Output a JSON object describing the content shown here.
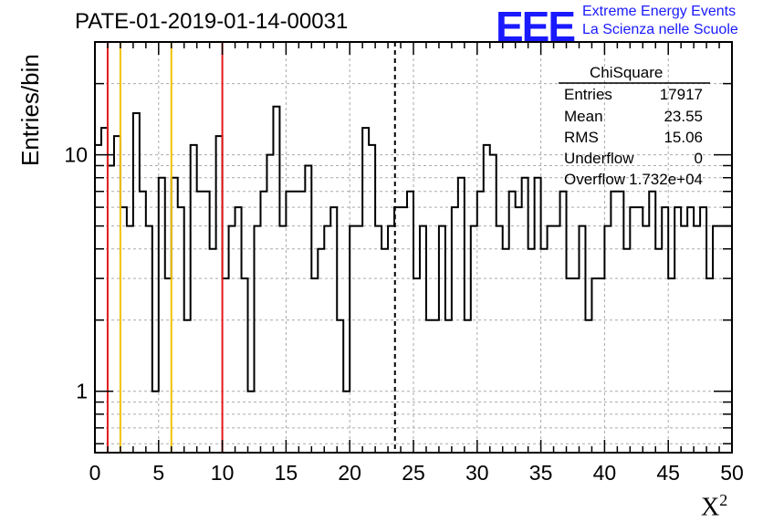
{
  "header": {
    "title": "PATE-01-2019-01-14-00031",
    "logo_text": "EEE",
    "logo_line1": "Extreme Energy Events",
    "logo_line2": "La Scienza nelle Scuole"
  },
  "stats_box": {
    "title": "ChiSquare",
    "rows": [
      {
        "label": "Entries",
        "value": "17917"
      },
      {
        "label": "Mean",
        "value": "23.55"
      },
      {
        "label": "RMS",
        "value": "15.06"
      },
      {
        "label": "Underflow",
        "value": "0"
      },
      {
        "label": "Overflow",
        "value": "1.732e+04"
      }
    ]
  },
  "chart_data": {
    "type": "histogram-step",
    "xlabel": "X",
    "xlabel_sup": "2",
    "ylabel": "Entries/bin",
    "xlim": [
      0,
      50
    ],
    "ylim": [
      0.55,
      30
    ],
    "yscale": "log",
    "grid": true,
    "bin_width": 0.5,
    "xticks": [
      0,
      5,
      10,
      15,
      20,
      25,
      30,
      35,
      40,
      45,
      50
    ],
    "yticks": [
      1,
      10
    ],
    "values": [
      11,
      13,
      9,
      12,
      6,
      5,
      15,
      7,
      5,
      1,
      8,
      3,
      8,
      6,
      2,
      11,
      7,
      7,
      4,
      12,
      3,
      5,
      6,
      3,
      1,
      5,
      7,
      10,
      16,
      5,
      7,
      7,
      7,
      9,
      3,
      4,
      5,
      6,
      2,
      1,
      5,
      5,
      13,
      11,
      5,
      4,
      5,
      6,
      6,
      7,
      3,
      5,
      2,
      2,
      5,
      2,
      6,
      8,
      2,
      5,
      7,
      11,
      10,
      5,
      4,
      7,
      6,
      8,
      4,
      8,
      4,
      5,
      5,
      7,
      3,
      3,
      5,
      2,
      3,
      3,
      5,
      7,
      7,
      4,
      6,
      6,
      5,
      7,
      4,
      6,
      3,
      6,
      5,
      6,
      5,
      6,
      3,
      5,
      5,
      5
    ],
    "vertical_lines": [
      {
        "x": 1,
        "color": "#e41a1c",
        "style": "solid"
      },
      {
        "x": 2,
        "color": "#f2c200",
        "style": "solid"
      },
      {
        "x": 6,
        "color": "#f2c200",
        "style": "solid"
      },
      {
        "x": 10,
        "color": "#e41a1c",
        "style": "solid"
      },
      {
        "x": 23.55,
        "color": "#000000",
        "style": "dashed"
      }
    ]
  }
}
